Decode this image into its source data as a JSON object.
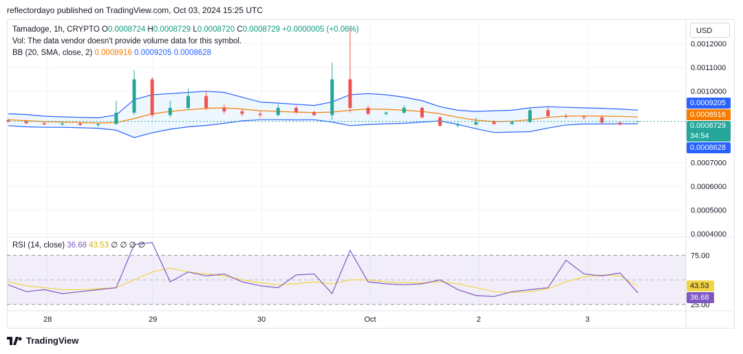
{
  "header": {
    "text": "reflectordayo published on TradingView.com, Oct 03, 2024 15:25 UTC"
  },
  "legend": {
    "symbol": "Tamadoge, 1h, CRYPTO",
    "ohlc_o_label": "O",
    "ohlc_o": "0.0008724",
    "ohlc_h_label": "H",
    "ohlc_h": "0.0008729",
    "ohlc_l_label": "L",
    "ohlc_l": "0.0008720",
    "ohlc_c_label": "C",
    "ohlc_c": "0.0008729",
    "change": "+0.0000005 (+0.06%)",
    "volume_note": "Vol: The data vendor doesn't provide volume data for this symbol.",
    "bb_label": "BB (20, SMA, close, 2)",
    "bb_basis": "0.0008916",
    "bb_upper": "0.0009205",
    "bb_lower": "0.0008628"
  },
  "rsi_legend": {
    "label": "RSI (14, close)",
    "rsi": "36.68",
    "ma": "43.53",
    "extra": "∅ ∅ ∅ ∅"
  },
  "price_axis": {
    "currency": "USD",
    "ticks": [
      "0.0012000",
      "0.0011000",
      "0.0010000",
      "0.0007000",
      "0.0006000",
      "0.0005000",
      "0.0004000"
    ],
    "tags": {
      "upper": "0.0009205",
      "basis": "0.0008916",
      "close": "0.0008729",
      "countdown": "34:54",
      "lower": "0.0008628"
    }
  },
  "rsi_axis": {
    "ticks": [
      "75.00",
      "25.00"
    ],
    "tags": {
      "ma": "43.53",
      "rsi": "36.68"
    }
  },
  "time_axis": {
    "labels": [
      "28",
      "29",
      "30",
      "Oct",
      "2",
      "3"
    ]
  },
  "footer": {
    "brand": "TradingView"
  },
  "colors": {
    "up": "#26a69a",
    "down": "#ef5350",
    "bb_band": "#2962ff",
    "bb_basis": "#f57c00",
    "rsi_line": "#7e57c2",
    "rsi_ma": "#f2d544",
    "grid": "#f0f3fa"
  },
  "chart_data": [
    {
      "type": "candlestick",
      "title": "Tamadoge, 1h, CRYPTO",
      "ylim": [
        0.0004,
        0.00128
      ],
      "x": [
        0,
        4,
        8,
        12,
        16,
        20,
        24,
        28,
        32,
        36,
        40,
        44,
        48,
        52,
        56,
        60,
        64,
        68,
        72,
        76,
        80,
        84,
        88,
        92,
        96,
        100,
        104,
        108,
        112,
        116,
        120,
        124,
        128,
        132,
        136,
        140
      ],
      "candles": [
        {
          "o": 0.000878,
          "h": 0.000885,
          "l": 0.000868,
          "c": 0.000872
        },
        {
          "o": 0.000872,
          "h": 0.00088,
          "l": 0.000862,
          "c": 0.000865
        },
        {
          "o": 0.000865,
          "h": 0.00087,
          "l": 0.000858,
          "c": 0.00086
        },
        {
          "o": 0.00086,
          "h": 0.000868,
          "l": 0.000855,
          "c": 0.000864
        },
        {
          "o": 0.000864,
          "h": 0.00087,
          "l": 0.000855,
          "c": 0.000858
        },
        {
          "o": 0.000858,
          "h": 0.000866,
          "l": 0.00085,
          "c": 0.000862
        },
        {
          "o": 0.000862,
          "h": 0.00096,
          "l": 0.00086,
          "c": 0.00091
        },
        {
          "o": 0.00091,
          "h": 0.00109,
          "l": 0.0009,
          "c": 0.00105
        },
        {
          "o": 0.00105,
          "h": 0.00106,
          "l": 0.00089,
          "c": 0.0009
        },
        {
          "o": 0.0009,
          "h": 0.00096,
          "l": 0.00089,
          "c": 0.00093
        },
        {
          "o": 0.00093,
          "h": 0.00101,
          "l": 0.00092,
          "c": 0.00098
        },
        {
          "o": 0.00098,
          "h": 0.001,
          "l": 0.00092,
          "c": 0.00093
        },
        {
          "o": 0.00093,
          "h": 0.000945,
          "l": 0.000905,
          "c": 0.000915
        },
        {
          "o": 0.000915,
          "h": 0.000925,
          "l": 0.000895,
          "c": 0.000905
        },
        {
          "o": 0.000905,
          "h": 0.000915,
          "l": 0.00089,
          "c": 0.0009
        },
        {
          "o": 0.0009,
          "h": 0.000945,
          "l": 0.000895,
          "c": 0.00093
        },
        {
          "o": 0.00093,
          "h": 0.00094,
          "l": 0.000905,
          "c": 0.000912
        },
        {
          "o": 0.000912,
          "h": 0.000918,
          "l": 0.000895,
          "c": 0.0009
        },
        {
          "o": 0.0009,
          "h": 0.00112,
          "l": 0.00088,
          "c": 0.00105
        },
        {
          "o": 0.00105,
          "h": 0.00127,
          "l": 0.00091,
          "c": 0.00093
        },
        {
          "o": 0.00093,
          "h": 0.00094,
          "l": 0.0009,
          "c": 0.000905
        },
        {
          "o": 0.000905,
          "h": 0.000915,
          "l": 0.000898,
          "c": 0.00091
        },
        {
          "o": 0.00091,
          "h": 0.00094,
          "l": 0.000905,
          "c": 0.00093
        },
        {
          "o": 0.00093,
          "h": 0.000935,
          "l": 0.000885,
          "c": 0.00089
        },
        {
          "o": 0.00089,
          "h": 0.000895,
          "l": 0.00085,
          "c": 0.000855
        },
        {
          "o": 0.000855,
          "h": 0.000868,
          "l": 0.000848,
          "c": 0.00086
        },
        {
          "o": 0.00086,
          "h": 0.00089,
          "l": 0.000855,
          "c": 0.00087
        },
        {
          "o": 0.00087,
          "h": 0.000878,
          "l": 0.000858,
          "c": 0.000862
        },
        {
          "o": 0.000862,
          "h": 0.000875,
          "l": 0.000858,
          "c": 0.00087
        },
        {
          "o": 0.00087,
          "h": 0.00093,
          "l": 0.000868,
          "c": 0.00092
        },
        {
          "o": 0.00092,
          "h": 0.000935,
          "l": 0.000888,
          "c": 0.000895
        },
        {
          "o": 0.000895,
          "h": 0.000905,
          "l": 0.000885,
          "c": 0.000892
        },
        {
          "o": 0.000892,
          "h": 0.0009,
          "l": 0.00088,
          "c": 0.00089
        },
        {
          "o": 0.00089,
          "h": 0.000898,
          "l": 0.000862,
          "c": 0.000868
        },
        {
          "o": 0.000868,
          "h": 0.000875,
          "l": 0.000855,
          "c": 0.00086
        },
        {
          "o": 0.0008724,
          "h": 0.0008729,
          "l": 0.000872,
          "c": 0.0008729
        }
      ],
      "bb_upper": [
        0.000905,
        0.000902,
        0.000895,
        0.000892,
        0.00089,
        0.000888,
        0.0009,
        0.000965,
        0.000985,
        0.00099,
        0.000995,
        0.001,
        0.000995,
        0.000975,
        0.000955,
        0.00095,
        0.000945,
        0.00094,
        0.000955,
        0.000985,
        0.00099,
        0.000985,
        0.000975,
        0.00096,
        0.000935,
        0.00092,
        0.000915,
        0.000918,
        0.00092,
        0.00093,
        0.000935,
        0.000932,
        0.00093,
        0.000928,
        0.000925,
        0.0009205
      ],
      "bb_basis": [
        0.00088,
        0.000876,
        0.000872,
        0.00087,
        0.000868,
        0.000866,
        0.000868,
        0.000885,
        0.000905,
        0.000915,
        0.000922,
        0.000928,
        0.00093,
        0.000925,
        0.000918,
        0.000915,
        0.000912,
        0.00091,
        0.000912,
        0.00092,
        0.000925,
        0.000924,
        0.00092,
        0.000915,
        0.000905,
        0.00089,
        0.000878,
        0.000872,
        0.000874,
        0.00088,
        0.00089,
        0.000895,
        0.000896,
        0.000895,
        0.000894,
        0.0008916
      ],
      "bb_lower": [
        0.000855,
        0.00085,
        0.000848,
        0.000848,
        0.000846,
        0.000844,
        0.000836,
        0.000805,
        0.000825,
        0.00084,
        0.00085,
        0.000856,
        0.000865,
        0.000875,
        0.00088,
        0.00088,
        0.000879,
        0.00088,
        0.00087,
        0.000855,
        0.00086,
        0.000863,
        0.000865,
        0.00087,
        0.000875,
        0.00086,
        0.000842,
        0.000826,
        0.000828,
        0.00083,
        0.000845,
        0.000858,
        0.000862,
        0.000862,
        0.000863,
        0.0008628
      ]
    },
    {
      "type": "line",
      "title": "RSI (14, close)",
      "ylim": [
        20,
        90
      ],
      "yticks": [
        75,
        25
      ],
      "x": [
        0,
        4,
        8,
        12,
        16,
        20,
        24,
        28,
        32,
        36,
        40,
        44,
        48,
        52,
        56,
        60,
        64,
        68,
        72,
        76,
        80,
        84,
        88,
        92,
        96,
        100,
        104,
        108,
        112,
        116,
        120,
        124,
        128,
        132,
        136,
        140
      ],
      "series": [
        {
          "name": "RSI",
          "values": [
            45,
            38,
            40,
            36,
            38,
            40,
            42,
            86,
            88,
            48,
            58,
            54,
            56,
            48,
            44,
            42,
            55,
            56,
            36,
            80,
            48,
            46,
            45,
            46,
            50,
            40,
            34,
            33,
            38,
            40,
            42,
            70,
            56,
            54,
            57,
            36.68
          ]
        },
        {
          "name": "RSI-based MA",
          "values": [
            48,
            44,
            42,
            40,
            40,
            41,
            42,
            50,
            58,
            62,
            58,
            56,
            54,
            50,
            47,
            45,
            46,
            48,
            46,
            50,
            50,
            48,
            47,
            47,
            48,
            46,
            42,
            38,
            37,
            38,
            41,
            48,
            53,
            55,
            54,
            43.53
          ]
        }
      ]
    }
  ]
}
